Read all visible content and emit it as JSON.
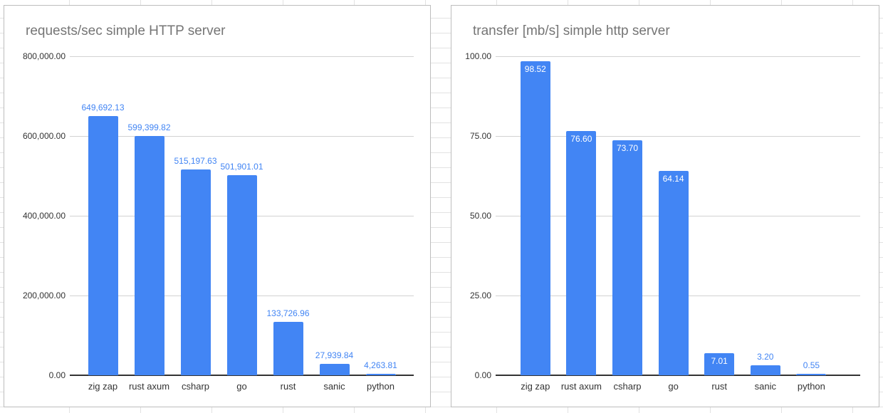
{
  "colors": {
    "bar": "#4285f4",
    "data_label_outside": "#4285f4",
    "data_label_inside": "#ffffff",
    "title": "#757575",
    "axis_text": "#333333",
    "chart_gridline": "#d2d2d2",
    "axis_line": "#333333",
    "card_border": "#bdbdbd",
    "sheet_gridline": "#e2e2e2"
  },
  "chart_data": [
    {
      "type": "bar",
      "title": "requests/sec simple HTTP server",
      "categories": [
        "zig zap",
        "rust axum",
        "csharp",
        "go",
        "rust",
        "sanic",
        "python"
      ],
      "values": [
        649692.13,
        599399.82,
        515197.63,
        501901.01,
        133726.96,
        27939.84,
        4263.81
      ],
      "value_labels": [
        "649,692.13",
        "599,399.82",
        "515,197.63",
        "501,901.01",
        "133,726.96",
        "27,939.84",
        "4,263.81"
      ],
      "label_inside": [
        false,
        false,
        false,
        false,
        false,
        false,
        false
      ],
      "ylim": [
        0,
        800000
      ],
      "yticks": [
        {
          "value": 800000,
          "label": "800,000.00"
        },
        {
          "value": 600000,
          "label": "600,000.00"
        },
        {
          "value": 400000,
          "label": "400,000.00"
        },
        {
          "value": 200000,
          "label": "200,000.00"
        },
        {
          "value": 0,
          "label": "0.00"
        }
      ],
      "xlabel": "",
      "ylabel": "",
      "grid": true,
      "legend": "none"
    },
    {
      "type": "bar",
      "title": "transfer [mb/s] simple http server",
      "categories": [
        "zig zap",
        "rust axum",
        "csharp",
        "go",
        "rust",
        "sanic",
        "python"
      ],
      "values": [
        98.52,
        76.6,
        73.7,
        64.14,
        7.01,
        3.2,
        0.55
      ],
      "value_labels": [
        "98.52",
        "76.60",
        "73.70",
        "64.14",
        "7.01",
        "3.20",
        "0.55"
      ],
      "label_inside": [
        true,
        true,
        true,
        true,
        true,
        false,
        false
      ],
      "ylim": [
        0,
        100
      ],
      "yticks": [
        {
          "value": 100,
          "label": "100.00"
        },
        {
          "value": 75,
          "label": "75.00"
        },
        {
          "value": 50,
          "label": "50.00"
        },
        {
          "value": 25,
          "label": "25.00"
        },
        {
          "value": 0,
          "label": "0.00"
        }
      ],
      "xlabel": "",
      "ylabel": "",
      "grid": true,
      "legend": "none"
    }
  ]
}
